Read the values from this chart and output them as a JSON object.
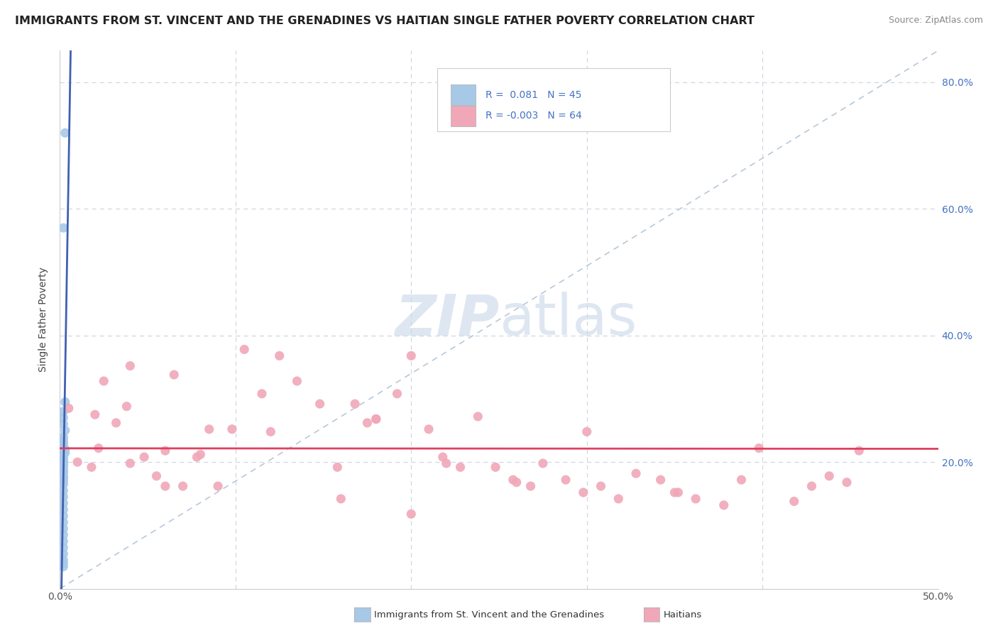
{
  "title": "IMMIGRANTS FROM ST. VINCENT AND THE GRENADINES VS HAITIAN SINGLE FATHER POVERTY CORRELATION CHART",
  "source": "Source: ZipAtlas.com",
  "ylabel": "Single Father Poverty",
  "xlim": [
    0.0,
    0.5
  ],
  "ylim": [
    0.0,
    0.85
  ],
  "r_blue": 0.081,
  "n_blue": 45,
  "r_pink": -0.003,
  "n_pink": 64,
  "blue_color": "#a8c8e8",
  "pink_color": "#f0a8b8",
  "blue_line_color": "#4060b0",
  "pink_line_color": "#e04060",
  "diagonal_color": "#b8c8d8",
  "label_color": "#4472c4",
  "watermark_color": "#c8d8e8",
  "legend1": "Immigrants from St. Vincent and the Grenadines",
  "legend2": "Haitians",
  "blue_scatter_x": [
    0.003,
    0.002,
    0.003,
    0.002,
    0.002,
    0.002,
    0.003,
    0.002,
    0.002,
    0.003,
    0.002,
    0.002,
    0.002,
    0.002,
    0.002,
    0.002,
    0.002,
    0.002,
    0.002,
    0.002,
    0.003,
    0.002,
    0.002,
    0.002,
    0.002,
    0.002,
    0.002,
    0.002,
    0.002,
    0.002,
    0.002,
    0.002,
    0.002,
    0.002,
    0.002,
    0.002,
    0.002,
    0.002,
    0.002,
    0.002,
    0.002,
    0.002,
    0.002,
    0.002,
    0.002
  ],
  "blue_scatter_y": [
    0.72,
    0.57,
    0.295,
    0.28,
    0.27,
    0.26,
    0.25,
    0.24,
    0.23,
    0.22,
    0.21,
    0.205,
    0.2,
    0.195,
    0.19,
    0.185,
    0.18,
    0.175,
    0.17,
    0.205,
    0.215,
    0.225,
    0.23,
    0.235,
    0.215,
    0.21,
    0.2,
    0.195,
    0.185,
    0.175,
    0.165,
    0.155,
    0.145,
    0.135,
    0.125,
    0.115,
    0.105,
    0.095,
    0.085,
    0.075,
    0.065,
    0.055,
    0.045,
    0.04,
    0.035
  ],
  "pink_scatter_x": [
    0.005,
    0.01,
    0.018,
    0.02,
    0.025,
    0.032,
    0.038,
    0.04,
    0.048,
    0.055,
    0.06,
    0.065,
    0.07,
    0.078,
    0.085,
    0.09,
    0.098,
    0.105,
    0.115,
    0.125,
    0.135,
    0.148,
    0.158,
    0.168,
    0.175,
    0.18,
    0.192,
    0.2,
    0.21,
    0.218,
    0.228,
    0.238,
    0.248,
    0.258,
    0.268,
    0.275,
    0.288,
    0.298,
    0.308,
    0.318,
    0.328,
    0.342,
    0.352,
    0.362,
    0.378,
    0.388,
    0.398,
    0.418,
    0.428,
    0.438,
    0.448,
    0.455,
    0.12,
    0.16,
    0.2,
    0.04,
    0.06,
    0.08,
    0.022,
    0.18,
    0.22,
    0.26,
    0.3,
    0.35
  ],
  "pink_scatter_y": [
    0.285,
    0.2,
    0.192,
    0.275,
    0.328,
    0.262,
    0.288,
    0.352,
    0.208,
    0.178,
    0.218,
    0.338,
    0.162,
    0.208,
    0.252,
    0.162,
    0.252,
    0.378,
    0.308,
    0.368,
    0.328,
    0.292,
    0.192,
    0.292,
    0.262,
    0.268,
    0.308,
    0.368,
    0.252,
    0.208,
    0.192,
    0.272,
    0.192,
    0.172,
    0.162,
    0.198,
    0.172,
    0.152,
    0.162,
    0.142,
    0.182,
    0.172,
    0.152,
    0.142,
    0.132,
    0.172,
    0.222,
    0.138,
    0.162,
    0.178,
    0.168,
    0.218,
    0.248,
    0.142,
    0.118,
    0.198,
    0.162,
    0.212,
    0.222,
    0.268,
    0.198,
    0.168,
    0.248,
    0.152
  ]
}
